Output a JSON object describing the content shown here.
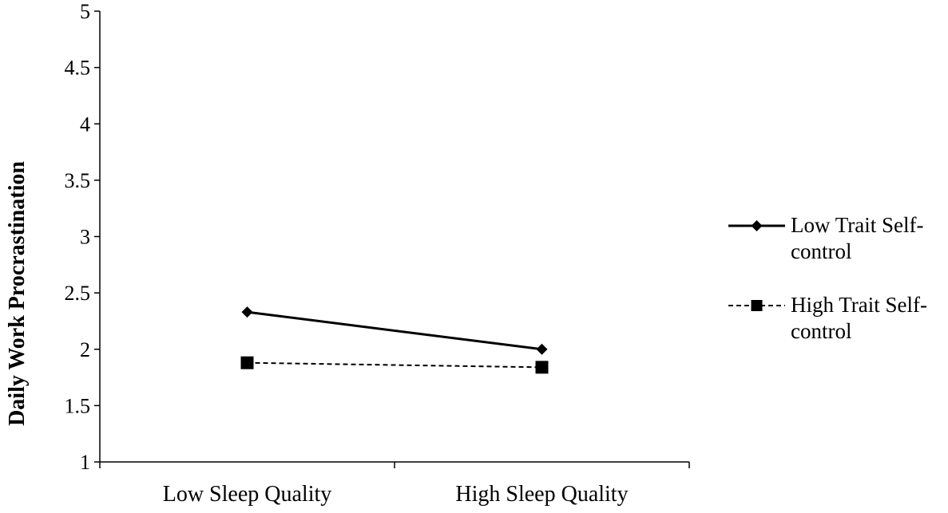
{
  "chart_data": {
    "type": "line",
    "title": "",
    "xlabel": "",
    "ylabel": "Daily Work Procrastination",
    "categories": [
      "Low Sleep Quality",
      "High Sleep Quality"
    ],
    "ylim": [
      1,
      5
    ],
    "yticks": [
      "1",
      "1.5",
      "2",
      "2.5",
      "3",
      "3.5",
      "4",
      "4.5",
      "5"
    ],
    "grid": false,
    "legend_position": "right",
    "series": [
      {
        "name": "Low Trait Self-control",
        "name_lines": [
          "Low Trait Self-",
          "control"
        ],
        "values": [
          2.33,
          2.0
        ],
        "line_style": "solid",
        "marker": "diamond",
        "color": "#000000"
      },
      {
        "name": "High Trait Self-control",
        "name_lines": [
          "High Trait Self-",
          "control"
        ],
        "values": [
          1.88,
          1.84
        ],
        "line_style": "dashed",
        "marker": "square",
        "color": "#000000"
      }
    ]
  }
}
